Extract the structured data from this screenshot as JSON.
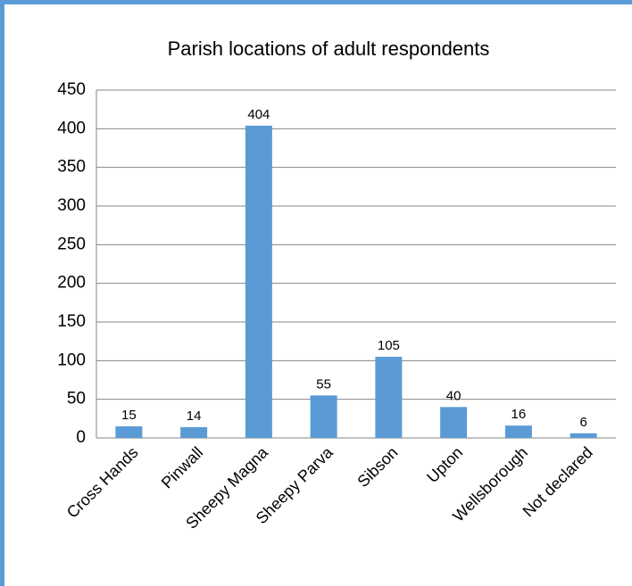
{
  "chart_data": {
    "type": "bar",
    "title": "Parish locations of adult respondents",
    "categories": [
      "Cross Hands",
      "Pinwall",
      "Sheepy Magna",
      "Sheepy Parva",
      "Sibson",
      "Upton",
      "Wellsborough",
      "Not declared"
    ],
    "values": [
      15,
      14,
      404,
      55,
      105,
      40,
      16,
      6
    ],
    "color": "#5b9bd5",
    "ylim": [
      0,
      450
    ],
    "yticks": [
      0,
      50,
      100,
      150,
      200,
      250,
      300,
      350,
      400,
      450
    ],
    "grid": true
  }
}
